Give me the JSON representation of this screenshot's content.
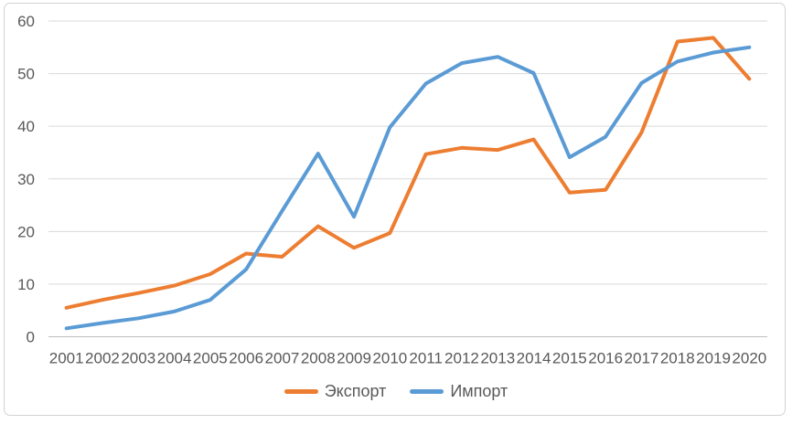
{
  "chart_data": {
    "type": "line",
    "categories": [
      "2001",
      "2002",
      "2003",
      "2004",
      "2005",
      "2006",
      "2007",
      "2008",
      "2009",
      "2010",
      "2011",
      "2012",
      "2013",
      "2014",
      "2015",
      "2016",
      "2017",
      "2018",
      "2019",
      "2020"
    ],
    "series": [
      {
        "name": "Экспорт",
        "color": "#ED7D31",
        "values": [
          5.5,
          7.0,
          8.3,
          9.7,
          11.9,
          15.8,
          15.2,
          21.0,
          16.9,
          19.7,
          34.7,
          35.9,
          35.5,
          37.5,
          27.4,
          27.9,
          38.8,
          56.1,
          56.8,
          49.0
        ]
      },
      {
        "name": "Импорт",
        "color": "#5B9BD5",
        "values": [
          1.6,
          2.6,
          3.5,
          4.8,
          7.0,
          12.8,
          23.9,
          34.8,
          22.8,
          39.8,
          48.1,
          52.0,
          53.2,
          50.1,
          34.1,
          38.0,
          48.2,
          52.3,
          54.0,
          55.0
        ]
      }
    ],
    "title": "",
    "xlabel": "",
    "ylabel": "",
    "ylim": [
      0,
      60
    ],
    "yticks": [
      0,
      10,
      20,
      30,
      40,
      50,
      60
    ],
    "grid": true,
    "legend_position": "bottom"
  },
  "colors": {
    "gridline": "#d9d9d9",
    "zero_axis": "#bfbfbf",
    "tick_text": "#595959",
    "frame_border": "#d2d2d2",
    "background": "#ffffff"
  }
}
